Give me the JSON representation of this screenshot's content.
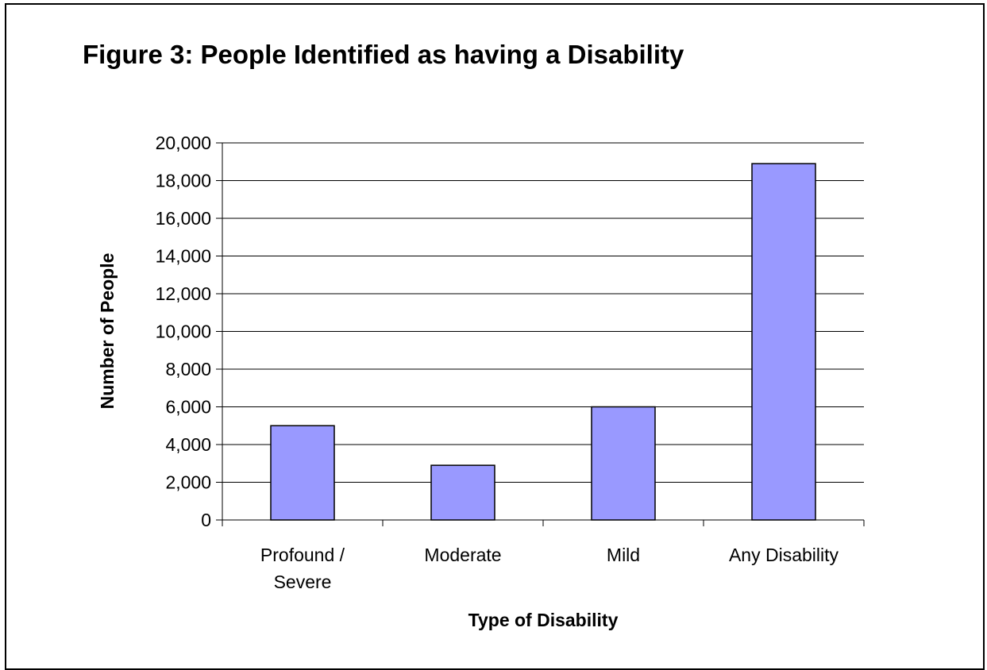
{
  "chart_data": {
    "type": "bar",
    "title": "Figure 3: People Identified as having a Disability",
    "xlabel": "Type of Disability",
    "ylabel": "Number of People",
    "categories": [
      [
        "Profound /",
        "Severe"
      ],
      [
        "Moderate"
      ],
      [
        "Mild"
      ],
      [
        "Any Disability"
      ]
    ],
    "values": [
      5000,
      2900,
      6000,
      18900
    ],
    "ylim": [
      0,
      20000
    ],
    "yticks": [
      0,
      2000,
      4000,
      6000,
      8000,
      10000,
      12000,
      14000,
      16000,
      18000,
      20000
    ],
    "ytick_labels": [
      "0",
      "2,000",
      "4,000",
      "6,000",
      "8,000",
      "10,000",
      "12,000",
      "14,000",
      "16,000",
      "18,000",
      "20,000"
    ],
    "grid": true,
    "legend": false,
    "bar_color": "#9999ff",
    "bar_edge_color": "#000000"
  }
}
